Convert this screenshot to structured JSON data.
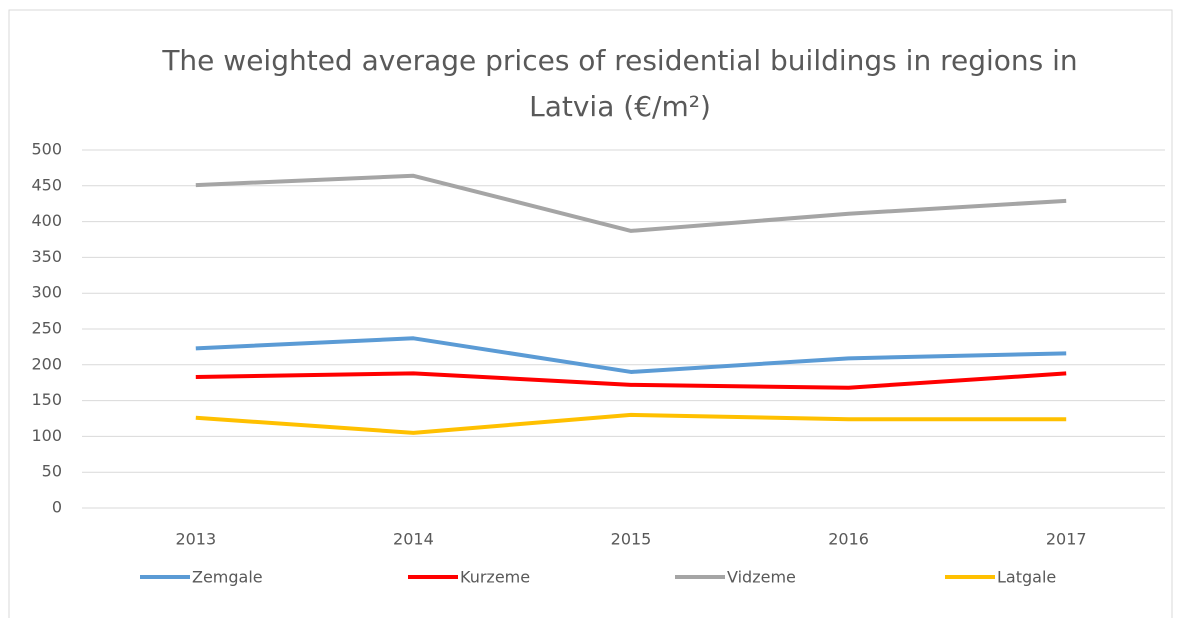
{
  "chart_data": {
    "type": "line",
    "title": "The weighted average prices of residential buildings in regions in Latvia (€/m²)",
    "categories": [
      "2013",
      "2014",
      "2015",
      "2016",
      "2017"
    ],
    "series": [
      {
        "name": "Zemgale",
        "color": "#5b9bd5",
        "values": [
          223,
          237,
          190,
          209,
          216
        ]
      },
      {
        "name": "Kurzeme",
        "color": "#ff0000",
        "values": [
          183,
          188,
          172,
          168,
          188
        ]
      },
      {
        "name": "Vidzeme",
        "color": "#a5a5a5",
        "values": [
          451,
          464,
          387,
          411,
          429
        ]
      },
      {
        "name": "Latgale",
        "color": "#ffc000",
        "values": [
          126,
          105,
          130,
          124,
          124
        ]
      }
    ],
    "ylim": [
      0,
      500
    ],
    "yticks": [
      0,
      50,
      100,
      150,
      200,
      250,
      300,
      350,
      400,
      450,
      500
    ],
    "grid": true,
    "legend": "bottom"
  }
}
